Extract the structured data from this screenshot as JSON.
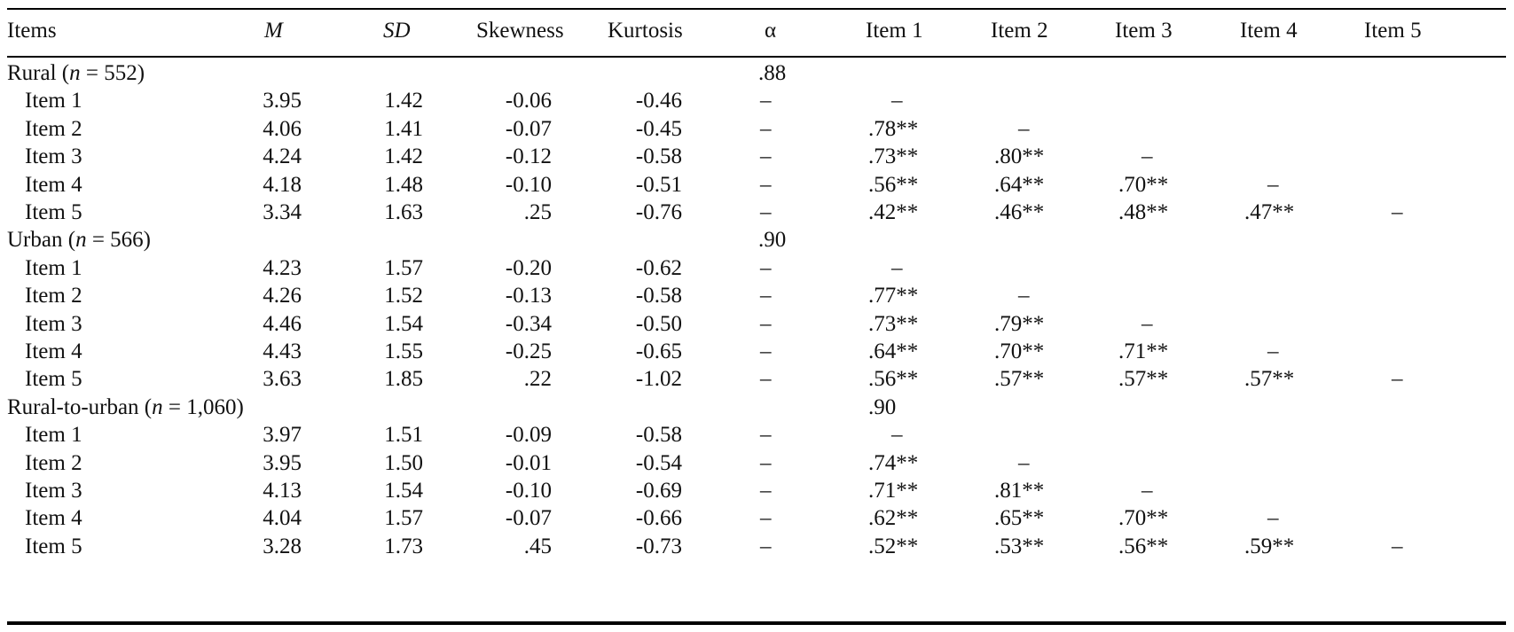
{
  "header": {
    "items": "Items",
    "m": "M",
    "sd": "SD",
    "skewness": "Skewness",
    "kurtosis": "Kurtosis",
    "alpha": "α",
    "item1": "Item 1",
    "item2": "Item 2",
    "item3": "Item 3",
    "item4": "Item 4",
    "item5": "Item 5"
  },
  "groups": [
    {
      "label_prefix": "Rural (",
      "n_symbol": "n",
      "label_suffix": " = 552)",
      "alpha": ".88",
      "rows": [
        {
          "item": "Item 1",
          "m": "3.95",
          "sd": "1.42",
          "skew": "-0.06",
          "kurt": "-0.46",
          "a": "–",
          "r1": "–",
          "r2": "",
          "r3": "",
          "r4": "",
          "r5": ""
        },
        {
          "item": "Item 2",
          "m": "4.06",
          "sd": "1.41",
          "skew": "-0.07",
          "kurt": "-0.45",
          "a": "–",
          "r1": ".78**",
          "r2": "–",
          "r3": "",
          "r4": "",
          "r5": ""
        },
        {
          "item": "Item 3",
          "m": "4.24",
          "sd": "1.42",
          "skew": "-0.12",
          "kurt": "-0.58",
          "a": "–",
          "r1": ".73**",
          "r2": ".80**",
          "r3": "–",
          "r4": "",
          "r5": ""
        },
        {
          "item": "Item 4",
          "m": "4.18",
          "sd": "1.48",
          "skew": "-0.10",
          "kurt": "-0.51",
          "a": "–",
          "r1": ".56**",
          "r2": ".64**",
          "r3": ".70**",
          "r4": "–",
          "r5": ""
        },
        {
          "item": "Item 5",
          "m": "3.34",
          "sd": "1.63",
          "skew": ".25",
          "kurt": "-0.76",
          "a": "–",
          "r1": ".42**",
          "r2": ".46**",
          "r3": ".48**",
          "r4": ".47**",
          "r5": "–"
        }
      ]
    },
    {
      "label_prefix": "Urban (",
      "n_symbol": "n",
      "label_suffix": " = 566)",
      "alpha": ".90",
      "rows": [
        {
          "item": "Item 1",
          "m": "4.23",
          "sd": "1.57",
          "skew": "-0.20",
          "kurt": "-0.62",
          "a": "–",
          "r1": "–",
          "r2": "",
          "r3": "",
          "r4": "",
          "r5": ""
        },
        {
          "item": "Item 2",
          "m": "4.26",
          "sd": "1.52",
          "skew": "-0.13",
          "kurt": "-0.58",
          "a": "–",
          "r1": ".77**",
          "r2": "–",
          "r3": "",
          "r4": "",
          "r5": ""
        },
        {
          "item": "Item 3",
          "m": "4.46",
          "sd": "1.54",
          "skew": "-0.34",
          "kurt": "-0.50",
          "a": "–",
          "r1": ".73**",
          "r2": ".79**",
          "r3": "–",
          "r4": "",
          "r5": ""
        },
        {
          "item": "Item 4",
          "m": "4.43",
          "sd": "1.55",
          "skew": "-0.25",
          "kurt": "-0.65",
          "a": "–",
          "r1": ".64**",
          "r2": ".70**",
          "r3": ".71**",
          "r4": "–",
          "r5": ""
        },
        {
          "item": "Item 5",
          "m": "3.63",
          "sd": "1.85",
          "skew": ".22",
          "kurt": "-1.02",
          "a": "–",
          "r1": ".56**",
          "r2": ".57**",
          "r3": ".57**",
          "r4": ".57**",
          "r5": "–"
        }
      ]
    },
    {
      "label_prefix": "Rural-to-urban (",
      "n_symbol": "n",
      "label_suffix": " = 1,060)",
      "alpha": "",
      "item1_col_value": ".90",
      "rows": [
        {
          "item": "Item 1",
          "m": "3.97",
          "sd": "1.51",
          "skew": "-0.09",
          "kurt": "-0.58",
          "a": "–",
          "r1": "–",
          "r2": "",
          "r3": "",
          "r4": "",
          "r5": ""
        },
        {
          "item": "Item 2",
          "m": "3.95",
          "sd": "1.50",
          "skew": "-0.01",
          "kurt": "-0.54",
          "a": "–",
          "r1": ".74**",
          "r2": "–",
          "r3": "",
          "r4": "",
          "r5": ""
        },
        {
          "item": "Item 3",
          "m": "4.13",
          "sd": "1.54",
          "skew": "-0.10",
          "kurt": "-0.69",
          "a": "–",
          "r1": ".71**",
          "r2": ".81**",
          "r3": "–",
          "r4": "",
          "r5": ""
        },
        {
          "item": "Item 4",
          "m": "4.04",
          "sd": "1.57",
          "skew": "-0.07",
          "kurt": "-0.66",
          "a": "–",
          "r1": ".62**",
          "r2": ".65**",
          "r3": ".70**",
          "r4": "–",
          "r5": ""
        },
        {
          "item": "Item 5",
          "m": "3.28",
          "sd": "1.73",
          "skew": ".45",
          "kurt": "-0.73",
          "a": "–",
          "r1": ".52**",
          "r2": ".53**",
          "r3": ".56**",
          "r4": ".59**",
          "r5": "–"
        }
      ]
    }
  ]
}
